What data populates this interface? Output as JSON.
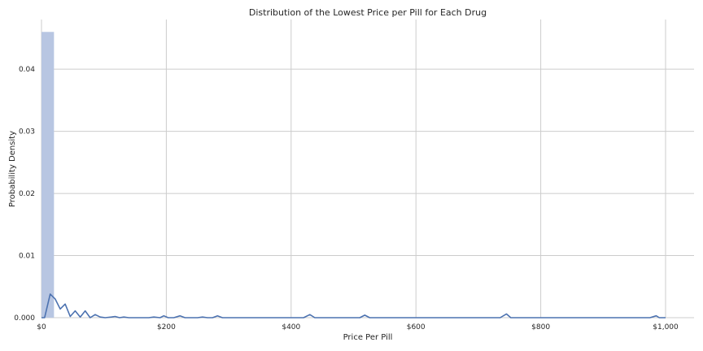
{
  "chart_data": {
    "type": "histogram",
    "title": "Distribution of the Lowest Price per Pill for Each Drug",
    "xlabel": "Price Per Pill",
    "ylabel": "Probability Density",
    "xlim": [
      0,
      1000
    ],
    "ylim": [
      0,
      0.048
    ],
    "x_ticks": [
      0,
      200,
      400,
      600,
      800,
      1000
    ],
    "x_tick_labels": [
      "$0",
      "$200",
      "$400",
      "$600",
      "$800",
      "$1,000"
    ],
    "y_ticks": [
      0,
      0.01,
      0.02,
      0.03,
      0.04
    ],
    "y_tick_labels": [
      "0.000",
      "0.01",
      "0.02",
      "0.03",
      "0.04"
    ],
    "grid": true,
    "histogram": {
      "bin_width": 20,
      "bins": [
        {
          "x0": 0,
          "x1": 20,
          "density": 0.046
        }
      ],
      "color": "#b8c6e2"
    },
    "density_curve": {
      "color": "#4c72b0",
      "x": [
        0,
        5,
        14,
        22,
        30,
        38,
        46,
        54,
        62,
        70,
        78,
        86,
        94,
        102,
        112,
        118,
        125,
        132,
        140,
        150,
        160,
        172,
        180,
        190,
        196,
        203,
        212,
        222,
        230,
        240,
        250,
        258,
        266,
        274,
        282,
        290,
        300,
        320,
        350,
        380,
        410,
        420,
        430,
        438,
        450,
        480,
        510,
        518,
        526,
        535,
        560,
        600,
        650,
        700,
        720,
        735,
        745,
        752,
        760,
        780,
        820,
        860,
        900,
        950,
        975,
        985,
        990,
        1000
      ],
      "y": [
        0,
        0,
        0.0038,
        0.003,
        0.0014,
        0.0022,
        0.0002,
        0.0011,
        0.0001,
        0.0011,
        0,
        0.0005,
        0.0001,
        0,
        0.0001,
        0.0002,
        0,
        0.0001,
        0,
        0,
        0,
        0,
        0.0001,
        0,
        0.0003,
        0,
        0,
        0.0003,
        0,
        0,
        0,
        0.0001,
        0,
        0,
        0.0003,
        0,
        0,
        0,
        0,
        0,
        0,
        0,
        0.0005,
        0,
        0,
        0,
        0,
        0.0004,
        0,
        0,
        0,
        0,
        0,
        0,
        0,
        0,
        0.0006,
        0,
        0,
        0,
        0,
        0,
        0,
        0,
        0,
        0.0003,
        0,
        0
      ]
    }
  }
}
